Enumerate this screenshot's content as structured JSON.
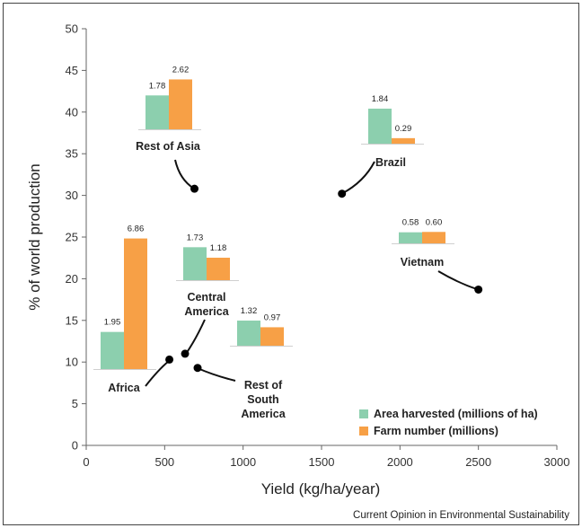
{
  "chart_data": {
    "type": "scatter",
    "xlabel": "Yield (kg/ha/year)",
    "ylabel": "% of world production",
    "xlim": [
      0,
      3000
    ],
    "ylim": [
      0,
      50
    ],
    "xticks": [
      "0",
      "500",
      "1000",
      "1500",
      "2000",
      "2500",
      "3000"
    ],
    "yticks": [
      "0",
      "5",
      "10",
      "15",
      "20",
      "25",
      "30",
      "35",
      "40",
      "45",
      "50"
    ],
    "grid": false,
    "legend_position": "bottom-right",
    "series": [
      {
        "name": "Area harvested (millions of ha)",
        "color": "#8ccfae"
      },
      {
        "name": "Farm number (millions)",
        "color": "#f7a046"
      }
    ],
    "points": [
      {
        "region": "Rest of Asia",
        "x": 690,
        "y": 30.8,
        "area_harvested": 1.78,
        "area_label": "1.78",
        "farm_number": 2.62,
        "farm_label": "2.62"
      },
      {
        "region": "Brazil",
        "x": 1630,
        "y": 30.2,
        "area_harvested": 1.84,
        "area_label": "1.84",
        "farm_number": 0.29,
        "farm_label": "0.29"
      },
      {
        "region": "Vietnam",
        "x": 2500,
        "y": 18.7,
        "area_harvested": 0.58,
        "area_label": "0.58",
        "farm_number": 0.6,
        "farm_label": "0.60"
      },
      {
        "region": "Central America",
        "x": 630,
        "y": 11.0,
        "area_harvested": 1.73,
        "area_label": "1.73",
        "farm_number": 1.18,
        "farm_label": "1.18"
      },
      {
        "region": "Rest of South America",
        "x": 710,
        "y": 9.3,
        "area_harvested": 1.32,
        "area_label": "1.32",
        "farm_number": 0.97,
        "farm_label": "0.97"
      },
      {
        "region": "Africa",
        "x": 530,
        "y": 10.3,
        "area_harvested": 1.95,
        "area_label": "1.95",
        "farm_number": 6.86,
        "farm_label": "6.86"
      }
    ]
  },
  "credit": "Current Opinion in Environmental Sustainability"
}
